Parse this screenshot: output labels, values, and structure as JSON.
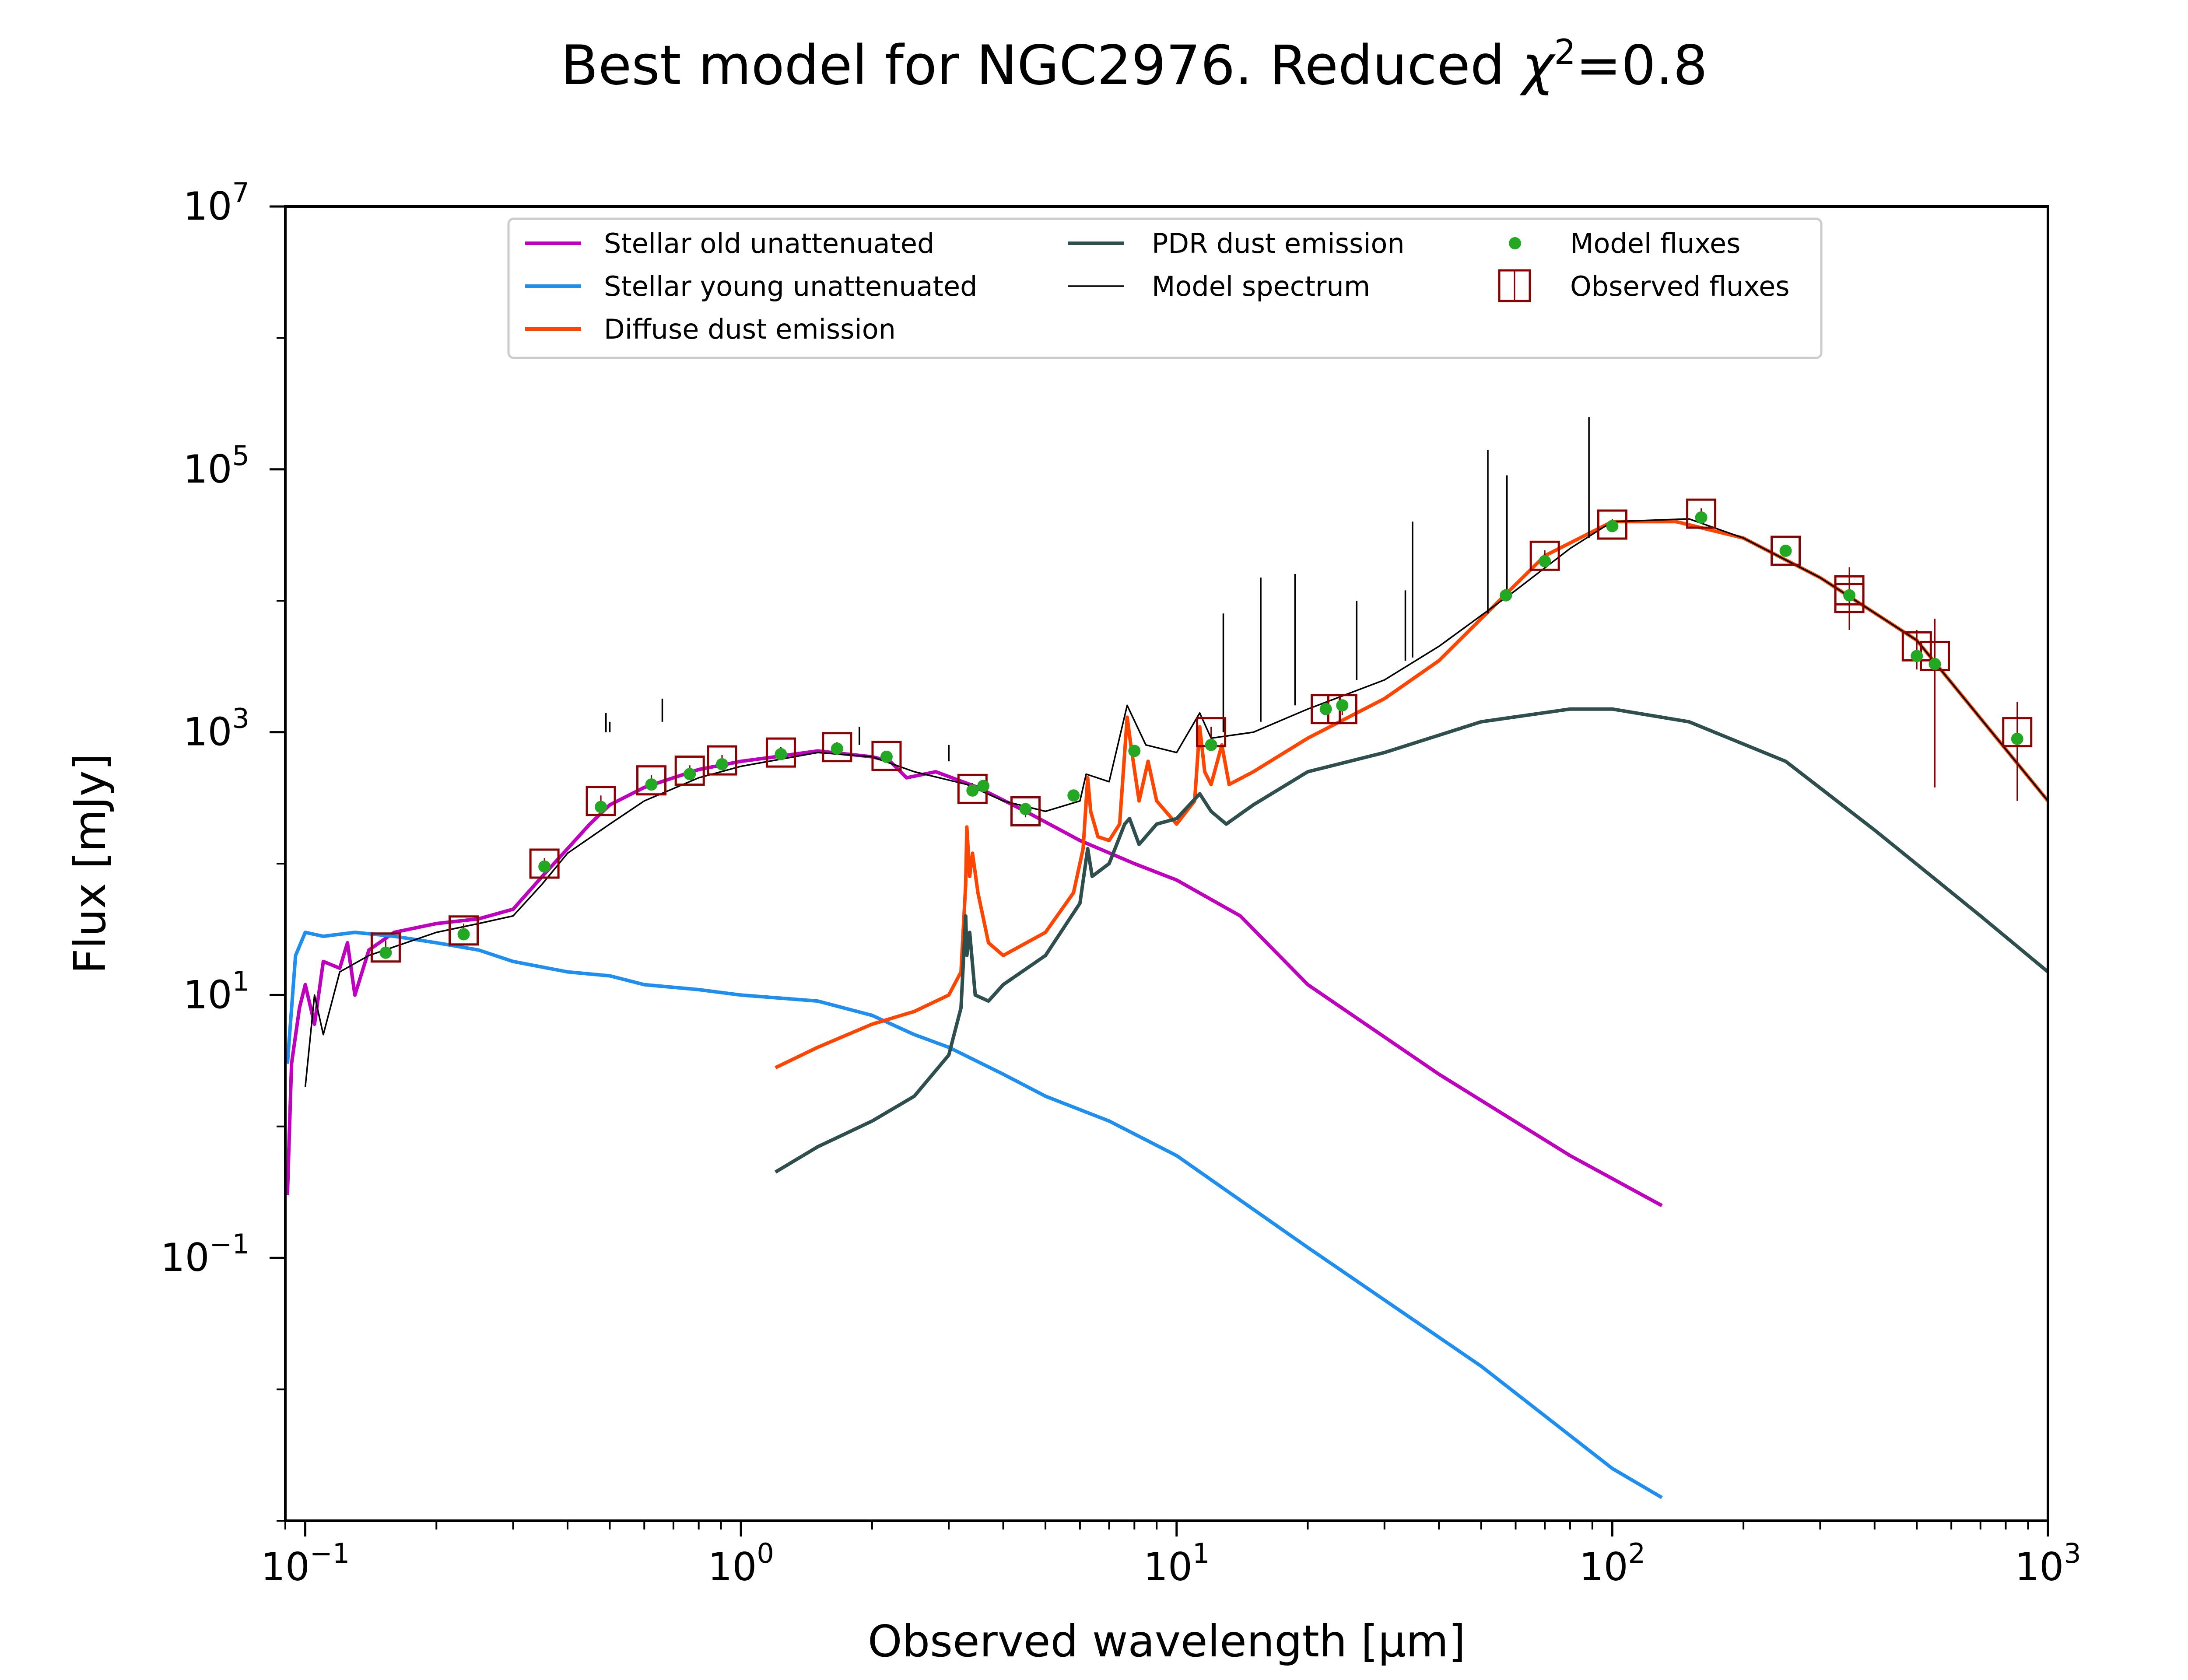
{
  "chart_data": {
    "type": "line",
    "title": "Best model for NGC2976. Reduced χ²=0.8",
    "title_parts": {
      "main": "Best model for NGC2976. Reduced ",
      "chi": "χ",
      "sup": "2",
      "tail": "=0.8"
    },
    "xlabel": "Observed wavelength [μm]",
    "ylabel": "Flux [mJy]",
    "xscale": "log",
    "yscale": "log",
    "xlim": [
      0.09,
      1000
    ],
    "ylim": [
      0.001,
      10000000
    ],
    "grid": false,
    "legend_position": "top-center",
    "x_ticks": [
      {
        "value": 0.1,
        "base": "10",
        "exp": "−1"
      },
      {
        "value": 1,
        "base": "10",
        "exp": "0"
      },
      {
        "value": 10,
        "base": "10",
        "exp": "1"
      },
      {
        "value": 100,
        "base": "10",
        "exp": "2"
      },
      {
        "value": 1000,
        "base": "10",
        "exp": "3"
      }
    ],
    "y_ticks": [
      {
        "value": 0.1,
        "base": "10",
        "exp": "−1"
      },
      {
        "value": 10,
        "base": "10",
        "exp": "1"
      },
      {
        "value": 1000,
        "base": "10",
        "exp": "3"
      },
      {
        "value": 100000,
        "base": "10",
        "exp": "5"
      },
      {
        "value": 10000000,
        "base": "10",
        "exp": "7"
      }
    ],
    "series": [
      {
        "name": "Stellar old unattenuated",
        "color": "#bf00bf",
        "points": [
          [
            0.091,
            0.3
          ],
          [
            0.093,
            3
          ],
          [
            0.097,
            8
          ],
          [
            0.1,
            12
          ],
          [
            0.105,
            6
          ],
          [
            0.11,
            18
          ],
          [
            0.12,
            16
          ],
          [
            0.125,
            25
          ],
          [
            0.13,
            10
          ],
          [
            0.14,
            22
          ],
          [
            0.16,
            30
          ],
          [
            0.2,
            35
          ],
          [
            0.25,
            38
          ],
          [
            0.3,
            45
          ],
          [
            0.35,
            80
          ],
          [
            0.4,
            130
          ],
          [
            0.45,
            200
          ],
          [
            0.5,
            280
          ],
          [
            0.6,
            380
          ],
          [
            0.7,
            450
          ],
          [
            0.8,
            520
          ],
          [
            1.0,
            600
          ],
          [
            1.2,
            650
          ],
          [
            1.5,
            720
          ],
          [
            2.0,
            650
          ],
          [
            2.2,
            600
          ],
          [
            2.4,
            450
          ],
          [
            2.8,
            500
          ],
          [
            3.5,
            380
          ],
          [
            4.5,
            250
          ],
          [
            6,
            150
          ],
          [
            8,
            100
          ],
          [
            10,
            75
          ],
          [
            14,
            40
          ],
          [
            20,
            12
          ],
          [
            40,
            2.5
          ],
          [
            80,
            0.6
          ],
          [
            130,
            0.25
          ]
        ]
      },
      {
        "name": "Stellar young unattenuated",
        "color": "#1e8ff0",
        "points": [
          [
            0.091,
            3
          ],
          [
            0.095,
            20
          ],
          [
            0.1,
            30
          ],
          [
            0.11,
            28
          ],
          [
            0.13,
            30
          ],
          [
            0.16,
            28
          ],
          [
            0.2,
            25
          ],
          [
            0.25,
            22
          ],
          [
            0.3,
            18
          ],
          [
            0.4,
            15
          ],
          [
            0.5,
            14
          ],
          [
            0.6,
            12
          ],
          [
            0.8,
            11
          ],
          [
            1.0,
            10
          ],
          [
            1.5,
            9
          ],
          [
            2.0,
            7
          ],
          [
            2.5,
            5
          ],
          [
            3,
            4
          ],
          [
            4,
            2.5
          ],
          [
            5,
            1.7
          ],
          [
            7,
            1.1
          ],
          [
            10,
            0.6
          ],
          [
            20,
            0.12
          ],
          [
            50,
            0.015
          ],
          [
            100,
            0.0025
          ],
          [
            130,
            0.0015
          ]
        ]
      },
      {
        "name": "Diffuse dust emission",
        "color": "#ff4500",
        "points": [
          [
            1.2,
            2.8
          ],
          [
            1.5,
            4
          ],
          [
            2,
            6
          ],
          [
            2.5,
            7.5
          ],
          [
            3.0,
            10
          ],
          [
            3.2,
            15
          ],
          [
            3.28,
            70
          ],
          [
            3.3,
            190
          ],
          [
            3.35,
            80
          ],
          [
            3.4,
            120
          ],
          [
            3.5,
            60
          ],
          [
            3.7,
            25
          ],
          [
            4,
            20
          ],
          [
            5,
            30
          ],
          [
            5.8,
            60
          ],
          [
            6.1,
            130
          ],
          [
            6.25,
            450
          ],
          [
            6.35,
            250
          ],
          [
            6.6,
            160
          ],
          [
            7.0,
            150
          ],
          [
            7.4,
            200
          ],
          [
            7.7,
            1300
          ],
          [
            7.85,
            800
          ],
          [
            8.2,
            300
          ],
          [
            8.6,
            600
          ],
          [
            9,
            300
          ],
          [
            10,
            200
          ],
          [
            11.0,
            300
          ],
          [
            11.3,
            1100
          ],
          [
            11.6,
            500
          ],
          [
            12.0,
            400
          ],
          [
            12.7,
            800
          ],
          [
            13.2,
            400
          ],
          [
            15,
            500
          ],
          [
            20,
            900
          ],
          [
            30,
            1800
          ],
          [
            40,
            3500
          ],
          [
            55,
            10000
          ],
          [
            70,
            22000
          ],
          [
            100,
            40000
          ],
          [
            140,
            40000
          ],
          [
            200,
            30000
          ],
          [
            300,
            15000
          ],
          [
            500,
            5000
          ],
          [
            1000,
            300
          ]
        ]
      },
      {
        "name": "PDR dust emission",
        "color": "#2f4f4f",
        "points": [
          [
            1.2,
            0.45
          ],
          [
            1.5,
            0.7
          ],
          [
            2,
            1.1
          ],
          [
            2.5,
            1.7
          ],
          [
            3.0,
            3.5
          ],
          [
            3.2,
            8
          ],
          [
            3.28,
            40
          ],
          [
            3.3,
            20
          ],
          [
            3.35,
            30
          ],
          [
            3.45,
            10
          ],
          [
            3.7,
            9
          ],
          [
            4,
            12
          ],
          [
            5,
            20
          ],
          [
            6.0,
            50
          ],
          [
            6.25,
            130
          ],
          [
            6.4,
            80
          ],
          [
            7.0,
            100
          ],
          [
            7.6,
            200
          ],
          [
            7.8,
            220
          ],
          [
            8.2,
            140
          ],
          [
            9,
            200
          ],
          [
            10,
            220
          ],
          [
            11.3,
            340
          ],
          [
            12,
            250
          ],
          [
            13,
            200
          ],
          [
            15,
            280
          ],
          [
            20,
            500
          ],
          [
            30,
            700
          ],
          [
            50,
            1200
          ],
          [
            80,
            1500
          ],
          [
            100,
            1500
          ],
          [
            150,
            1200
          ],
          [
            250,
            600
          ],
          [
            400,
            180
          ],
          [
            700,
            40
          ],
          [
            1000,
            15
          ]
        ]
      },
      {
        "name": "Model spectrum",
        "color": "#000000",
        "points": [
          [
            0.1,
            2
          ],
          [
            0.105,
            10
          ],
          [
            0.11,
            5
          ],
          [
            0.12,
            15
          ],
          [
            0.14,
            20
          ],
          [
            0.2,
            30
          ],
          [
            0.25,
            35
          ],
          [
            0.3,
            40
          ],
          [
            0.35,
            70
          ],
          [
            0.4,
            120
          ],
          [
            0.5,
            200
          ],
          [
            0.6,
            300
          ],
          [
            0.8,
            450
          ],
          [
            1.0,
            550
          ],
          [
            1.5,
            700
          ],
          [
            2.0,
            650
          ],
          [
            2.5,
            500
          ],
          [
            3.3,
            400
          ],
          [
            4,
            300
          ],
          [
            5,
            250
          ],
          [
            6,
            300
          ],
          [
            6.2,
            480
          ],
          [
            7,
            420
          ],
          [
            7.7,
            1600
          ],
          [
            8.5,
            800
          ],
          [
            10,
            700
          ],
          [
            11.3,
            1400
          ],
          [
            12,
            900
          ],
          [
            15,
            1000
          ],
          [
            20,
            1500
          ],
          [
            30,
            2500
          ],
          [
            40,
            4500
          ],
          [
            60,
            12000
          ],
          [
            80,
            25000
          ],
          [
            100,
            40000
          ],
          [
            150,
            42000
          ],
          [
            200,
            30000
          ],
          [
            300,
            15000
          ],
          [
            500,
            5000
          ],
          [
            1000,
            300
          ]
        ]
      }
    ],
    "emission_lines": [
      [
        0.49,
        1000,
        1400
      ],
      [
        0.5,
        1000,
        1200
      ],
      [
        0.66,
        1200,
        1800
      ],
      [
        1.87,
        800,
        1100
      ],
      [
        3.0,
        600,
        800
      ],
      [
        12.8,
        1000,
        8000
      ],
      [
        15.6,
        1200,
        15000
      ],
      [
        18.7,
        1600,
        16000
      ],
      [
        25.9,
        2500,
        10000
      ],
      [
        33.5,
        3500,
        12000
      ],
      [
        34.8,
        3700,
        40000
      ],
      [
        51.8,
        8000,
        140000
      ],
      [
        57.3,
        10000,
        90000
      ],
      [
        88.4,
        30000,
        250000
      ]
    ],
    "model_fluxes": {
      "name": "Model fluxes",
      "color": "#22a822",
      "points": [
        [
          0.153,
          21
        ],
        [
          0.231,
          29
        ],
        [
          0.354,
          95
        ],
        [
          0.477,
          270
        ],
        [
          0.623,
          400
        ],
        [
          0.763,
          480
        ],
        [
          0.905,
          570
        ],
        [
          1.235,
          680
        ],
        [
          1.662,
          750
        ],
        [
          2.159,
          650
        ],
        [
          3.4,
          360
        ],
        [
          3.6,
          390
        ],
        [
          4.5,
          260
        ],
        [
          5.8,
          330
        ],
        [
          8.0,
          720
        ],
        [
          12,
          800
        ],
        [
          22,
          1500
        ],
        [
          24,
          1600
        ],
        [
          57,
          11000
        ],
        [
          70,
          20000
        ],
        [
          100,
          37000
        ],
        [
          160,
          43000
        ],
        [
          250,
          24000
        ],
        [
          350,
          11000
        ],
        [
          500,
          3800
        ],
        [
          550,
          3300
        ],
        [
          850,
          890
        ]
      ]
    },
    "observed_fluxes": {
      "name": "Observed fluxes",
      "color": "#8b0000",
      "points": [
        [
          0.153,
          23,
          3
        ],
        [
          0.231,
          31,
          4
        ],
        [
          0.354,
          100,
          10
        ],
        [
          0.477,
          300,
          30
        ],
        [
          0.623,
          430,
          40
        ],
        [
          0.763,
          510,
          50
        ],
        [
          0.905,
          610,
          60
        ],
        [
          1.235,
          700,
          70
        ],
        [
          1.662,
          770,
          70
        ],
        [
          2.159,
          660,
          60
        ],
        [
          3.4,
          370,
          40
        ],
        [
          4.5,
          250,
          25
        ],
        [
          12,
          1000,
          100
        ],
        [
          22,
          1500,
          150
        ],
        [
          24,
          1500,
          150
        ],
        [
          70,
          22000,
          2200
        ],
        [
          100,
          38000,
          3800
        ],
        [
          160,
          46000,
          4600
        ],
        [
          250,
          24000,
          2400
        ],
        [
          350,
          12000,
          6000
        ],
        [
          350,
          10500,
          4500
        ],
        [
          500,
          4500,
          1500
        ],
        [
          550,
          3800,
          3500
        ],
        [
          850,
          1000,
          700
        ]
      ]
    }
  }
}
